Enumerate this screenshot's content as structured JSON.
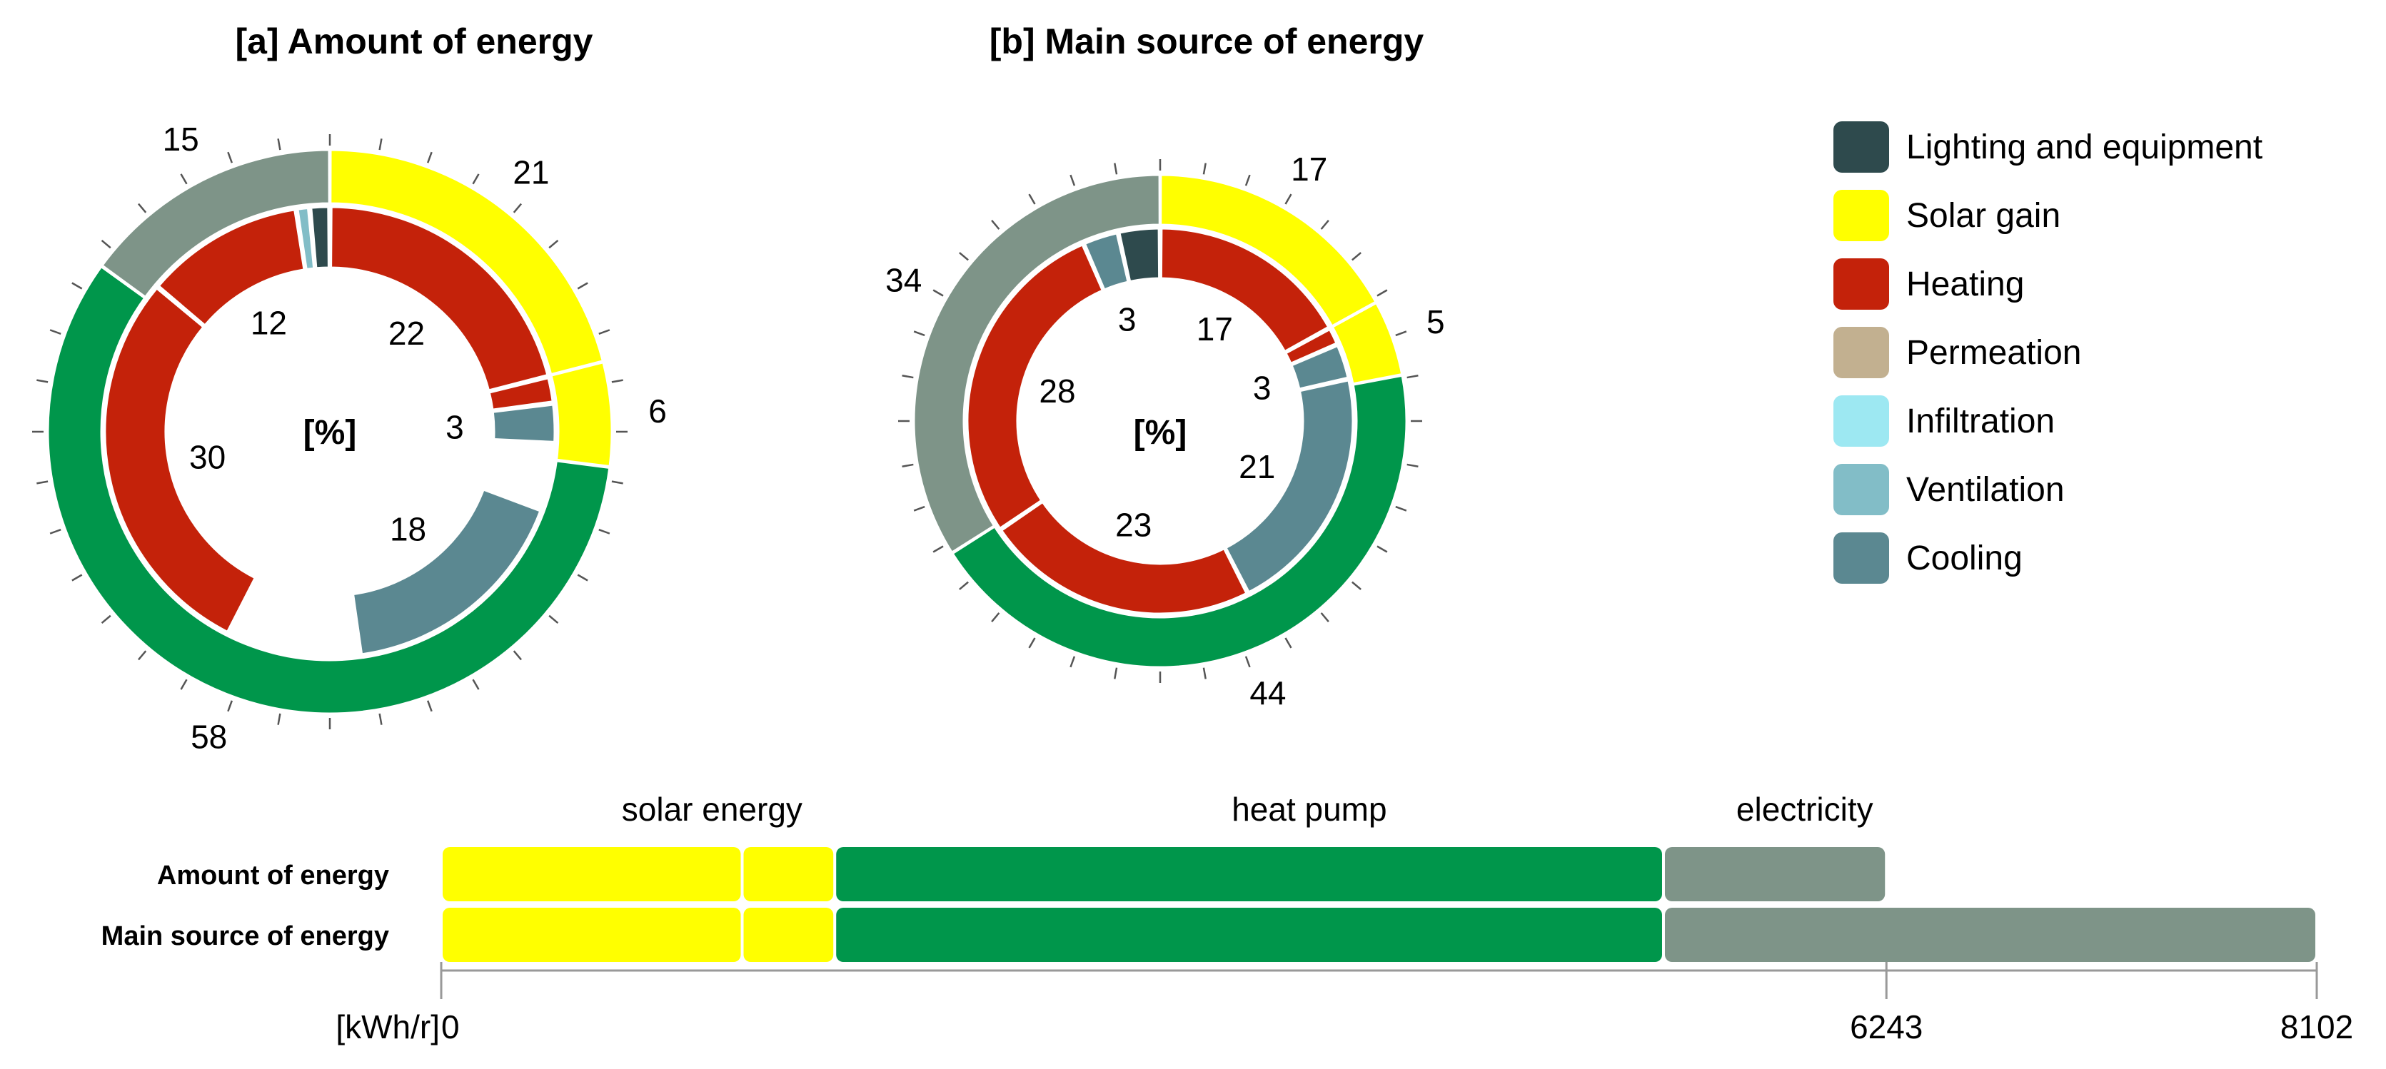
{
  "colors": {
    "lighting": "#2e4a4d",
    "solar": "#ffff00",
    "heating": "#c4220a",
    "permeation": "#c2b090",
    "infiltration": "#9de8f2",
    "ventilation": "#82bdc7",
    "cooling": "#5b8891",
    "heatpump": "#00964b",
    "electricity": "#7e9488",
    "tick": "#555555",
    "axis": "#999999"
  },
  "legend": [
    {
      "label": "Lighting and equipment",
      "color": "#2e4a4d"
    },
    {
      "label": "Solar gain",
      "color": "#ffff00"
    },
    {
      "label": "Heating",
      "color": "#c4220a"
    },
    {
      "label": "Permeation",
      "color": "#c2b090"
    },
    {
      "label": "Infiltration",
      "color": "#9de8f2"
    },
    {
      "label": "Ventilation",
      "color": "#82bdc7"
    },
    {
      "label": "Cooling",
      "color": "#5b8891"
    }
  ],
  "chart_data": [
    {
      "type": "pie",
      "title": "[a] Amount of energy",
      "center_label": "[%]",
      "outer_ring": {
        "slices": [
          {
            "category": "solar",
            "value": 21,
            "label": "21"
          },
          {
            "category": "solar",
            "value": 6,
            "label": "6"
          },
          {
            "category": "heatpump",
            "value": 58,
            "label": "58"
          },
          {
            "category": "electricity",
            "value": 15,
            "label": "15"
          }
        ]
      },
      "inner_ring": {
        "slices": [
          {
            "category": "heating",
            "value": 22,
            "label": "22"
          },
          {
            "category": "heating",
            "value": 2,
            "label": ""
          },
          {
            "category": "cooling",
            "value": 3,
            "label": "3"
          },
          {
            "category": "gap",
            "value": 5,
            "label": ""
          },
          {
            "category": "cooling",
            "value": 18,
            "label": "18"
          },
          {
            "category": "gap",
            "value": 10,
            "label": ""
          },
          {
            "category": "heating",
            "value": 30,
            "label": "30"
          },
          {
            "category": "heating",
            "value": 12,
            "label": "12"
          },
          {
            "category": "ventilation",
            "value": 1,
            "label": ""
          },
          {
            "category": "lighting",
            "value": 1.5,
            "label": ""
          }
        ]
      }
    },
    {
      "type": "pie",
      "title": "[b] Main source of energy",
      "center_label": "[%]",
      "outer_ring": {
        "slices": [
          {
            "category": "solar",
            "value": 17,
            "label": "17"
          },
          {
            "category": "solar",
            "value": 5,
            "label": "5"
          },
          {
            "category": "heatpump",
            "value": 44,
            "label": "44"
          },
          {
            "category": "electricity",
            "value": 34,
            "label": "34"
          }
        ]
      },
      "inner_ring": {
        "slices": [
          {
            "category": "heating",
            "value": 17,
            "label": "17"
          },
          {
            "category": "heating",
            "value": 1.5,
            "label": ""
          },
          {
            "category": "cooling",
            "value": 3,
            "label": "3"
          },
          {
            "category": "cooling",
            "value": 21,
            "label": "21"
          },
          {
            "category": "heating",
            "value": 23,
            "label": "23"
          },
          {
            "category": "heating",
            "value": 28,
            "label": "28"
          },
          {
            "category": "cooling",
            "value": 3,
            "label": "3"
          },
          {
            "category": "lighting",
            "value": 3.5,
            "label": ""
          }
        ]
      }
    },
    {
      "type": "bar",
      "orientation": "horizontal",
      "stacked": true,
      "categories": [
        "Amount of energy",
        "Main source of energy"
      ],
      "group_labels": [
        {
          "label": "solar energy",
          "center": 1170
        },
        {
          "label": "heat pump",
          "center": 3750
        },
        {
          "label": "electricity",
          "center": 5890
        }
      ],
      "series": [
        {
          "category": "solar",
          "values": [
            1300,
            1300
          ]
        },
        {
          "category": "solar",
          "values": [
            400,
            400
          ]
        },
        {
          "category": "heatpump",
          "values": [
            3580,
            3580
          ]
        },
        {
          "category": "electricity",
          "values": [
            963,
            2822
          ]
        }
      ],
      "xlim": [
        0,
        8102
      ],
      "axis_unit": "[kWh/r]",
      "xticks": [
        {
          "value": 0,
          "label": "0"
        },
        {
          "value": 6243,
          "label": "6243"
        },
        {
          "value": 8102,
          "label": "8102"
        }
      ]
    }
  ]
}
